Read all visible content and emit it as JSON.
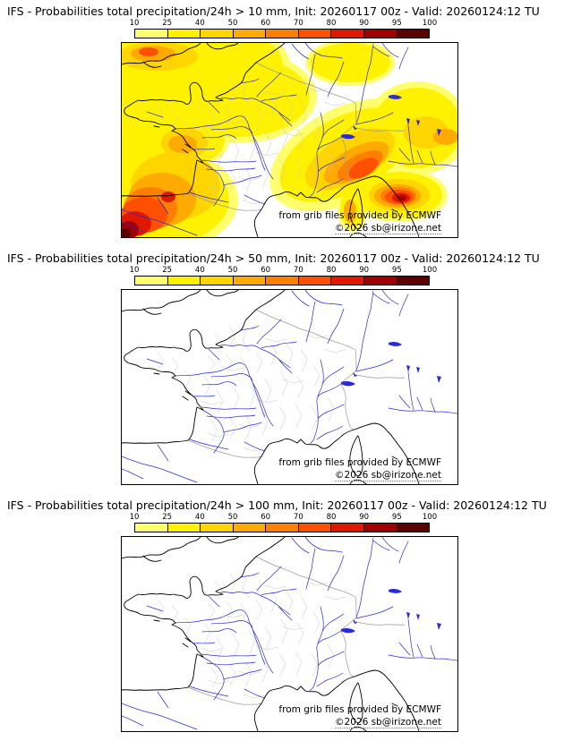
{
  "colorbar": {
    "unit": "%",
    "ticks": [
      "10",
      "25",
      "40",
      "50",
      "60",
      "70",
      "80",
      "90",
      "95",
      "100"
    ],
    "colors": [
      "#ffff6e",
      "#fff200",
      "#ffd500",
      "#ffaa00",
      "#ff7f00",
      "#ff4f00",
      "#e01800",
      "#a00000",
      "#5c0000"
    ]
  },
  "panels": [
    {
      "title": "IFS - Probabilities total precipitation/24h > 10 mm, Init: 20260117 00z - Valid: 20260124:12 TU",
      "threshold": "10 mm",
      "overlay": true,
      "credit": "from grib files provided by ECMWF",
      "copyright": "©2026 sb@irizone.net"
    },
    {
      "title": "IFS - Probabilities total precipitation/24h > 50 mm, Init: 20260117 00z - Valid: 20260124:12 TU",
      "threshold": "50 mm",
      "overlay": false,
      "credit": "from grib files provided by ECMWF",
      "copyright": "©2026 sb@irizone.net"
    },
    {
      "title": "IFS - Probabilities total precipitation/24h > 100 mm, Init: 20260117 00z - Valid: 20260124:12 TU",
      "threshold": "100 mm",
      "overlay": false,
      "credit": "from grib files provided by ECMWF",
      "copyright": "©2026 sb@irizone.net"
    }
  ],
  "map": {
    "region": "France",
    "colors": {
      "coastline": "#000000",
      "rivers": "#2b2bd5",
      "departments": "#c8c8c8",
      "country_borders": "#9a9a9a",
      "sea": "#ffffff"
    }
  }
}
